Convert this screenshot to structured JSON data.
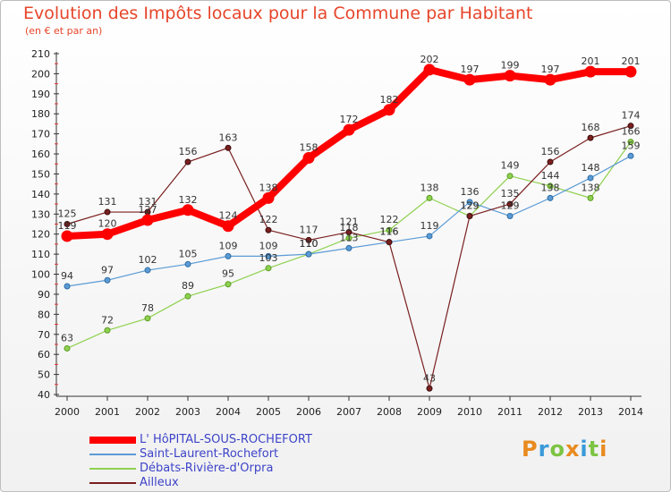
{
  "header": {
    "title": "Evolution des Impôts locaux pour la Commune par Habitant",
    "subtitle": "(en € et par an)"
  },
  "logo": {
    "text": "Proxiti",
    "colors": [
      "#e98a1f",
      "#3a9ad9",
      "#7cc443",
      "#e98a1f",
      "#3a9ad9",
      "#7cc443",
      "#e98a1f"
    ]
  },
  "chart_data": {
    "type": "line",
    "title": "Evolution des Impôts locaux pour la Commune par Habitant",
    "subtitle": "(en € et par an)",
    "x": [
      "2000",
      "2001",
      "2002",
      "2003",
      "2004",
      "2005",
      "2006",
      "2007",
      "2008",
      "2009",
      "2010",
      "2011",
      "2012",
      "2013",
      "2014"
    ],
    "ylim": [
      40,
      210
    ],
    "yticks": [
      40,
      50,
      60,
      70,
      80,
      90,
      100,
      110,
      120,
      130,
      140,
      150,
      160,
      170,
      180,
      190,
      200,
      210
    ],
    "grid": false,
    "legend_position": "bottom-left",
    "series": [
      {
        "name": "L' HôPITAL-SOUS-ROCHEFORT",
        "color": "#ff0000",
        "values": [
          119,
          120,
          127,
          132,
          124,
          138,
          158,
          172,
          182,
          202,
          197,
          199,
          197,
          201,
          201
        ],
        "labels": [
          "119",
          "120",
          "127",
          "132",
          "124",
          "138",
          "158",
          "172",
          "182",
          "202",
          "197",
          "199",
          "197",
          "201",
          "201"
        ]
      },
      {
        "name": "Saint-Laurent-Rochefort",
        "color": "#5b9bd5",
        "values": [
          94,
          97,
          102,
          105,
          109,
          109,
          110,
          113,
          116,
          119,
          136,
          129,
          138,
          148,
          159
        ],
        "labels": [
          "94",
          "97",
          "102",
          "105",
          "109",
          "109",
          "110",
          "113",
          "116",
          "119",
          "136",
          "129",
          "138",
          "148",
          "159"
        ]
      },
      {
        "name": "Débats-Rivière-d'Orpra",
        "color": "#8fd14f",
        "values": [
          63,
          72,
          78,
          89,
          95,
          103,
          110,
          118,
          122,
          138,
          129,
          149,
          144,
          138,
          166
        ],
        "labels": [
          "63",
          "72",
          "78",
          "89",
          "95",
          "103",
          "110",
          "118",
          "122",
          "138",
          "129",
          "149",
          "144",
          "138",
          "166"
        ]
      },
      {
        "name": "Ailleux",
        "color": "#7a1f1f",
        "values": [
          125,
          131,
          131,
          156,
          163,
          122,
          117,
          121,
          116,
          43,
          129,
          135,
          156,
          168,
          174
        ],
        "labels": [
          "125",
          "131",
          "131",
          "156",
          "163",
          "122",
          "117",
          "121",
          "116",
          "43",
          "129",
          "135",
          "156",
          "168",
          "174"
        ]
      }
    ]
  }
}
